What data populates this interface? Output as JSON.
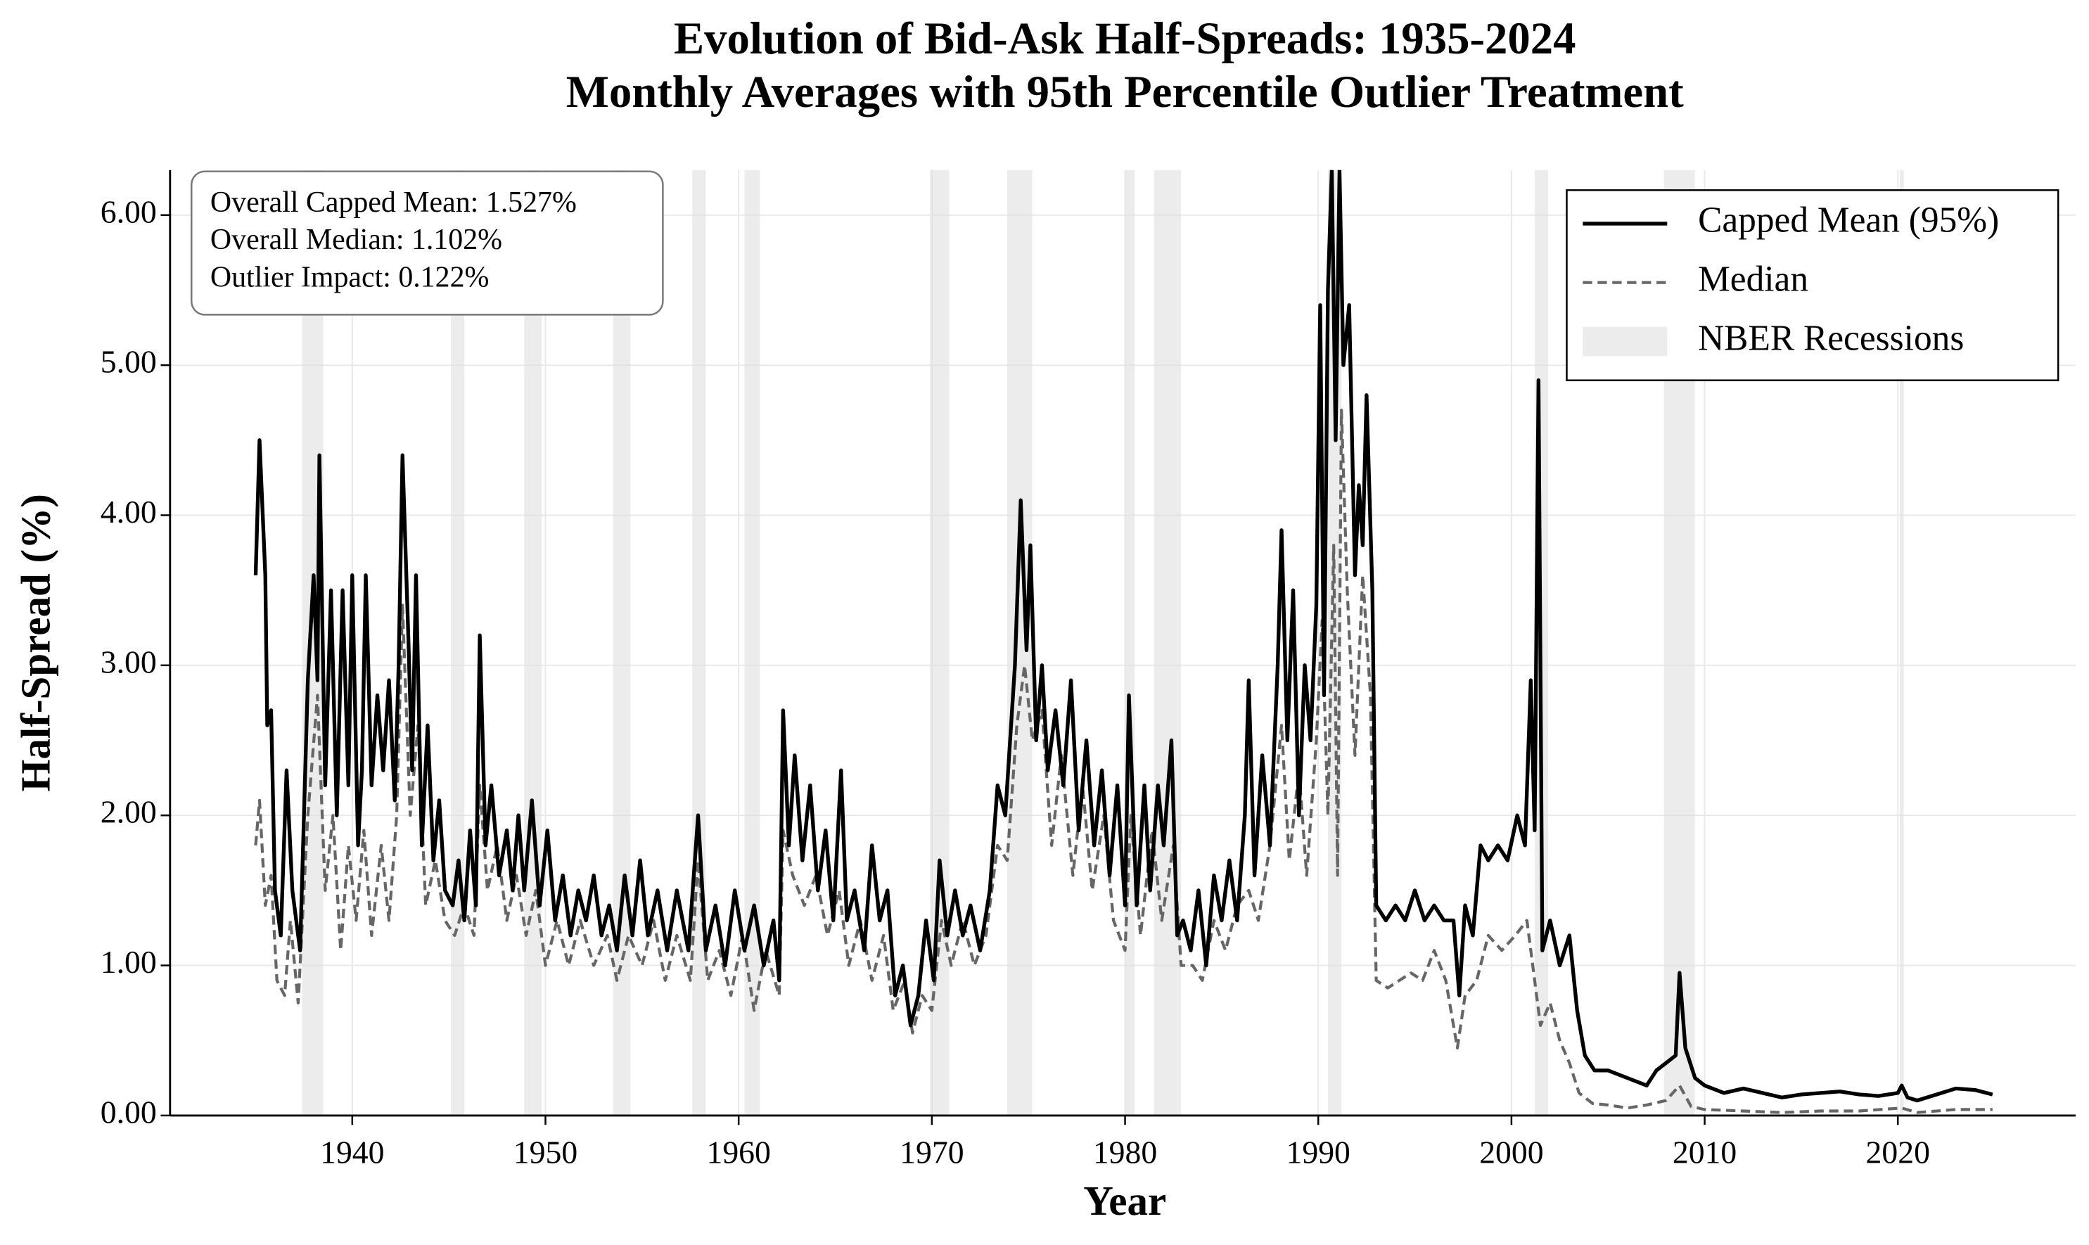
{
  "chart_data": {
    "type": "line",
    "title": "Evolution of Bid-Ask Half-Spreads: 1935-2024",
    "subtitle": "Monthly Averages with 95th Percentile Outlier Treatment",
    "xlabel": "Year",
    "ylabel": "Half-Spread (%)",
    "xlim": [
      1930.57,
      2029.2
    ],
    "ylim": [
      0,
      6.3
    ],
    "xticks": [
      1940,
      1950,
      1960,
      1970,
      1980,
      1990,
      2000,
      2010,
      2020
    ],
    "yticks": [
      {
        "value": 0,
        "label": "0.00"
      },
      {
        "value": 1,
        "label": "1.00"
      },
      {
        "value": 2,
        "label": "2.00"
      },
      {
        "value": 3,
        "label": "3.00"
      },
      {
        "value": 4,
        "label": "4.00"
      },
      {
        "value": 5,
        "label": "5.00"
      },
      {
        "value": 6,
        "label": "6.00"
      }
    ],
    "grid": true,
    "legend": "upper right",
    "annotation": [
      "Overall Capped Mean: 1.527%",
      "Overall Median: 1.102%",
      "Outlier Impact: 0.122%"
    ],
    "recession_label": "NBER Recessions",
    "recession_color": "#e0e0e0",
    "recessions": [
      [
        1937.4,
        1938.5
      ],
      [
        1945.1,
        1945.8
      ],
      [
        1948.9,
        1949.8
      ],
      [
        1953.5,
        1954.4
      ],
      [
        1957.6,
        1958.3
      ],
      [
        1960.3,
        1961.1
      ],
      [
        1969.9,
        1970.9
      ],
      [
        1973.9,
        1975.2
      ],
      [
        1980.0,
        1980.5
      ],
      [
        1981.5,
        1982.9
      ],
      [
        1990.5,
        1991.2
      ],
      [
        2001.2,
        2001.9
      ],
      [
        2007.9,
        2009.5
      ],
      [
        2020.1,
        2020.3
      ]
    ],
    "series": [
      {
        "name": "Capped Mean (95%)",
        "color": "#000000",
        "linestyle": "solid",
        "x": [
          1935.0,
          1935.2,
          1935.5,
          1935.6,
          1935.8,
          1936.0,
          1936.3,
          1936.6,
          1936.9,
          1937.3,
          1937.7,
          1938.0,
          1938.2,
          1938.3,
          1938.6,
          1938.9,
          1939.2,
          1939.5,
          1939.8,
          1940.0,
          1940.3,
          1940.5,
          1940.7,
          1941.0,
          1941.3,
          1941.6,
          1941.9,
          1942.2,
          1942.4,
          1942.6,
          1942.9,
          1943.1,
          1943.3,
          1943.6,
          1943.9,
          1944.2,
          1944.5,
          1944.8,
          1945.2,
          1945.5,
          1945.8,
          1946.1,
          1946.4,
          1946.6,
          1946.9,
          1947.2,
          1947.6,
          1948.0,
          1948.3,
          1948.6,
          1948.9,
          1949.3,
          1949.7,
          1950.1,
          1950.5,
          1950.9,
          1951.3,
          1951.7,
          1952.1,
          1952.5,
          1952.9,
          1953.3,
          1953.7,
          1954.1,
          1954.5,
          1954.9,
          1955.3,
          1955.8,
          1956.3,
          1956.8,
          1957.4,
          1957.9,
          1958.3,
          1958.8,
          1959.3,
          1959.8,
          1960.3,
          1960.8,
          1961.3,
          1961.8,
          1962.1,
          1962.3,
          1962.6,
          1962.9,
          1963.3,
          1963.7,
          1964.1,
          1964.5,
          1964.9,
          1965.3,
          1965.6,
          1966.0,
          1966.5,
          1966.9,
          1967.3,
          1967.7,
          1968.1,
          1968.5,
          1968.9,
          1969.3,
          1969.7,
          1970.1,
          1970.4,
          1970.8,
          1971.2,
          1971.6,
          1972.0,
          1972.5,
          1973.0,
          1973.4,
          1973.8,
          1974.3,
          1974.6,
          1974.9,
          1975.1,
          1975.4,
          1975.7,
          1976.0,
          1976.4,
          1976.8,
          1977.2,
          1977.6,
          1978.0,
          1978.4,
          1978.8,
          1979.2,
          1979.6,
          1980.0,
          1980.2,
          1980.6,
          1981.0,
          1981.3,
          1981.7,
          1982.0,
          1982.4,
          1982.7,
          1983.0,
          1983.4,
          1983.8,
          1984.2,
          1984.6,
          1985.0,
          1985.4,
          1985.8,
          1986.2,
          1986.4,
          1986.7,
          1987.1,
          1987.5,
          1987.9,
          1988.1,
          1988.4,
          1988.7,
          1989.0,
          1989.3,
          1989.6,
          1989.9,
          1990.1,
          1990.3,
          1990.5,
          1990.7,
          1990.9,
          1991.1,
          1991.3,
          1991.6,
          1991.9,
          1992.1,
          1992.3,
          1992.5,
          1992.8,
          1993.0,
          1993.5,
          1994.0,
          1994.5,
          1995.0,
          1995.5,
          1996.0,
          1996.5,
          1997.0,
          1997.3,
          1997.6,
          1998.0,
          1998.4,
          1998.8,
          1999.3,
          1999.8,
          2000.3,
          2000.7,
          2001.0,
          2001.2,
          2001.4,
          2001.6,
          2002.0,
          2002.5,
          2003.0,
          2003.4,
          2003.8,
          2004.3,
          2005.0,
          2006.0,
          2007.0,
          2007.5,
          2008.0,
          2008.5,
          2008.7,
          2009.0,
          2009.5,
          2010.0,
          2011.0,
          2012.0,
          2013.0,
          2014.0,
          2015.0,
          2016.0,
          2017.0,
          2018.0,
          2019.0,
          2020.0,
          2020.2,
          2020.5,
          2021.0,
          2022.0,
          2023.0,
          2024.0,
          2024.9
        ],
        "values": [
          3.6,
          4.5,
          3.6,
          2.6,
          2.7,
          1.5,
          1.2,
          2.3,
          1.5,
          1.1,
          2.9,
          3.6,
          2.9,
          4.4,
          2.2,
          3.5,
          2.0,
          3.5,
          2.2,
          3.6,
          1.8,
          2.3,
          3.6,
          2.2,
          2.8,
          2.3,
          2.9,
          2.1,
          3.0,
          4.4,
          3.2,
          2.3,
          3.6,
          1.8,
          2.6,
          1.7,
          2.1,
          1.5,
          1.4,
          1.7,
          1.3,
          1.9,
          1.4,
          3.2,
          1.8,
          2.2,
          1.6,
          1.9,
          1.5,
          2.0,
          1.5,
          2.1,
          1.4,
          1.9,
          1.3,
          1.6,
          1.2,
          1.5,
          1.3,
          1.6,
          1.2,
          1.4,
          1.1,
          1.6,
          1.2,
          1.7,
          1.2,
          1.5,
          1.1,
          1.5,
          1.1,
          2.0,
          1.1,
          1.4,
          1.0,
          1.5,
          1.1,
          1.4,
          1.0,
          1.3,
          0.9,
          2.7,
          1.8,
          2.4,
          1.7,
          2.2,
          1.5,
          1.9,
          1.3,
          2.3,
          1.3,
          1.5,
          1.1,
          1.8,
          1.3,
          1.5,
          0.8,
          1.0,
          0.6,
          0.8,
          1.3,
          0.9,
          1.7,
          1.2,
          1.5,
          1.2,
          1.4,
          1.1,
          1.5,
          2.2,
          2.0,
          3.0,
          4.1,
          3.1,
          3.8,
          2.5,
          3.0,
          2.3,
          2.7,
          2.2,
          2.9,
          1.9,
          2.5,
          1.8,
          2.3,
          1.6,
          2.2,
          1.4,
          2.8,
          1.4,
          2.2,
          1.5,
          2.2,
          1.8,
          2.5,
          1.2,
          1.3,
          1.1,
          1.5,
          1.0,
          1.6,
          1.3,
          1.7,
          1.3,
          2.0,
          2.9,
          1.6,
          2.4,
          1.8,
          3.0,
          3.9,
          2.5,
          3.5,
          2.0,
          3.0,
          2.5,
          3.4,
          5.4,
          2.8,
          5.5,
          6.3,
          4.5,
          6.3,
          5.0,
          5.4,
          3.6,
          4.2,
          3.8,
          4.8,
          3.5,
          1.4,
          1.3,
          1.4,
          1.3,
          1.5,
          1.3,
          1.4,
          1.3,
          1.3,
          0.8,
          1.4,
          1.2,
          1.8,
          1.7,
          1.8,
          1.7,
          2.0,
          1.8,
          2.9,
          1.9,
          4.9,
          1.1,
          1.3,
          1.0,
          1.2,
          0.7,
          0.4,
          0.3,
          0.3,
          0.25,
          0.2,
          0.3,
          0.35,
          0.4,
          0.95,
          0.45,
          0.25,
          0.2,
          0.15,
          0.18,
          0.15,
          0.12,
          0.14,
          0.15,
          0.16,
          0.14,
          0.13,
          0.15,
          0.2,
          0.12,
          0.1,
          0.14,
          0.18,
          0.17,
          0.14
        ]
      },
      {
        "name": "Median",
        "color": "#666666",
        "linestyle": "dashed",
        "x": [
          1935.0,
          1935.2,
          1935.5,
          1935.8,
          1936.1,
          1936.5,
          1936.8,
          1937.2,
          1937.7,
          1938.2,
          1938.6,
          1939.0,
          1939.4,
          1939.8,
          1940.2,
          1940.6,
          1941.0,
          1941.5,
          1941.9,
          1942.3,
          1942.6,
          1943.0,
          1943.4,
          1943.8,
          1944.3,
          1944.8,
          1945.3,
          1945.8,
          1946.3,
          1946.6,
          1947.0,
          1947.5,
          1948.0,
          1948.5,
          1949.0,
          1949.5,
          1950.0,
          1950.6,
          1951.2,
          1951.8,
          1952.5,
          1953.2,
          1953.7,
          1954.3,
          1955.0,
          1955.6,
          1956.2,
          1956.8,
          1957.5,
          1957.9,
          1958.4,
          1959.0,
          1959.6,
          1960.2,
          1960.8,
          1961.4,
          1962.1,
          1962.3,
          1962.8,
          1963.4,
          1964.0,
          1964.6,
          1965.2,
          1965.7,
          1966.3,
          1966.9,
          1967.5,
          1968.0,
          1968.6,
          1969.0,
          1969.5,
          1970.0,
          1970.5,
          1971.0,
          1971.6,
          1972.2,
          1972.8,
          1973.4,
          1973.9,
          1974.4,
          1974.8,
          1975.2,
          1975.7,
          1976.2,
          1976.7,
          1977.3,
          1977.8,
          1978.3,
          1978.9,
          1979.4,
          1980.0,
          1980.3,
          1980.8,
          1981.4,
          1981.9,
          1982.5,
          1982.9,
          1983.5,
          1984.0,
          1984.6,
          1985.2,
          1985.8,
          1986.4,
          1986.9,
          1987.5,
          1988.1,
          1988.5,
          1989.0,
          1989.4,
          1989.9,
          1990.2,
          1990.5,
          1990.8,
          1991.0,
          1991.2,
          1991.5,
          1991.9,
          1992.3,
          1992.7,
          1993.0,
          1993.6,
          1994.2,
          1994.8,
          1995.4,
          1996.0,
          1996.6,
          1997.2,
          1997.6,
          1998.2,
          1998.8,
          1999.5,
          2000.2,
          2000.8,
          2001.2,
          2001.5,
          2002.0,
          2002.5,
          2003.0,
          2003.5,
          2004.2,
          2005.0,
          2006.0,
          2007.0,
          2008.0,
          2008.7,
          2009.3,
          2010.0,
          2012.0,
          2014.0,
          2016.0,
          2018.0,
          2020.2,
          2021.0,
          2023.0,
          2024.9
        ],
        "values": [
          1.8,
          2.1,
          1.4,
          1.6,
          0.9,
          0.8,
          1.3,
          0.75,
          2.0,
          2.8,
          1.5,
          2.0,
          1.1,
          1.8,
          1.3,
          1.9,
          1.2,
          1.8,
          1.3,
          2.0,
          3.4,
          2.0,
          2.6,
          1.4,
          1.7,
          1.3,
          1.2,
          1.4,
          1.2,
          2.2,
          1.5,
          1.8,
          1.3,
          1.6,
          1.2,
          1.5,
          1.0,
          1.3,
          1.0,
          1.3,
          1.0,
          1.2,
          0.9,
          1.2,
          1.0,
          1.3,
          0.9,
          1.2,
          0.9,
          1.7,
          0.9,
          1.1,
          0.8,
          1.2,
          0.7,
          1.1,
          0.8,
          1.9,
          1.6,
          1.4,
          1.6,
          1.2,
          1.5,
          1.0,
          1.3,
          0.9,
          1.2,
          0.7,
          0.9,
          0.55,
          0.8,
          0.7,
          1.3,
          1.0,
          1.3,
          1.0,
          1.2,
          1.8,
          1.7,
          2.6,
          3.0,
          2.5,
          2.7,
          1.8,
          2.4,
          1.6,
          2.2,
          1.5,
          2.0,
          1.3,
          1.1,
          2.0,
          1.2,
          1.9,
          1.3,
          1.8,
          1.0,
          1.0,
          0.9,
          1.3,
          1.1,
          1.4,
          1.5,
          1.3,
          1.8,
          2.6,
          1.7,
          2.3,
          1.6,
          2.5,
          3.3,
          2.0,
          3.8,
          1.6,
          4.7,
          3.5,
          2.4,
          3.6,
          2.8,
          0.9,
          0.85,
          0.9,
          0.95,
          0.9,
          1.1,
          0.9,
          0.45,
          0.8,
          0.9,
          1.2,
          1.1,
          1.2,
          1.3,
          0.9,
          0.6,
          0.75,
          0.5,
          0.35,
          0.15,
          0.08,
          0.07,
          0.05,
          0.07,
          0.1,
          0.2,
          0.06,
          0.04,
          0.03,
          0.02,
          0.03,
          0.03,
          0.05,
          0.02,
          0.04,
          0.04
        ]
      }
    ]
  }
}
